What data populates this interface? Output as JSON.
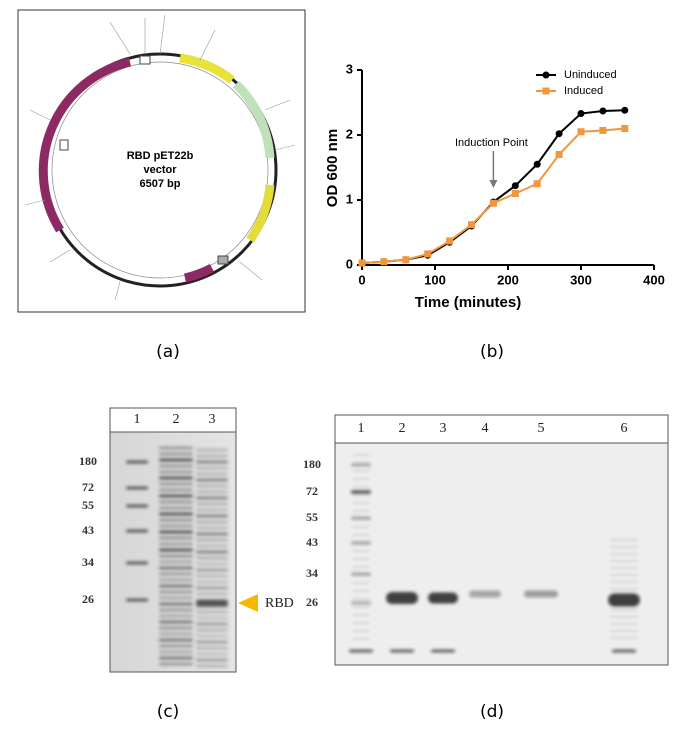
{
  "panel_labels": [
    "(a)",
    "(b)",
    "(c)",
    "(d)"
  ],
  "plasmid": {
    "name": "RBD pET22b",
    "line2": "vector",
    "size": "6507 bp"
  },
  "chart_data": {
    "type": "line",
    "xlabel": "Time (minutes)",
    "ylabel": "OD 600 nm",
    "x": [
      0,
      30,
      60,
      90,
      120,
      150,
      180,
      210,
      240,
      270,
      300,
      330,
      360
    ],
    "series": [
      {
        "name": "Uninduced",
        "color": "#000000",
        "marker": "circle",
        "values": [
          0.03,
          0.05,
          0.08,
          0.15,
          0.35,
          0.6,
          0.97,
          1.22,
          1.55,
          2.02,
          2.33,
          2.37,
          2.38
        ]
      },
      {
        "name": "Induced",
        "color": "#f0963c",
        "marker": "square",
        "values": [
          0.03,
          0.05,
          0.08,
          0.17,
          0.37,
          0.62,
          0.95,
          1.1,
          1.25,
          1.7,
          2.05,
          2.07,
          2.1
        ]
      }
    ],
    "xlim": [
      0,
      400
    ],
    "xticks": [
      0,
      100,
      200,
      300,
      400
    ],
    "ylim": [
      0,
      3
    ],
    "yticks": [
      0,
      1,
      2,
      3
    ],
    "legend": "top-right",
    "annotation": {
      "text": "Induction Point",
      "x": 180
    }
  },
  "gel_c": {
    "lanes": [
      "1",
      "2",
      "3"
    ],
    "markers": [
      "180",
      "72",
      "55",
      "43",
      "34",
      "26"
    ],
    "band_label": "RBD"
  },
  "gel_d": {
    "lanes": [
      "1",
      "2",
      "3",
      "4",
      "5",
      "6"
    ],
    "markers": [
      "180",
      "72",
      "55",
      "43",
      "34",
      "26"
    ]
  }
}
